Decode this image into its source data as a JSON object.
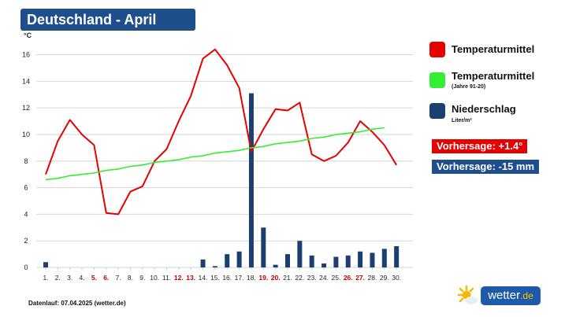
{
  "header": {
    "title": "Deutschland - April"
  },
  "legend": {
    "items": [
      {
        "label": "Temperaturmittel",
        "sub": "",
        "color": "#e60000"
      },
      {
        "label": "Temperaturmittel",
        "sub": "(Jahre 91-20)",
        "color": "#33ee33"
      },
      {
        "label": "Niederschlag",
        "sub": "Liter/m²",
        "color": "#1c3f72"
      }
    ]
  },
  "forecast": {
    "temperature": "Vorhersage: +1.4°",
    "temperature_color": "#e60000",
    "precipitation": "Vorhersage: -15 mm",
    "precipitation_color": "#1f4e8c"
  },
  "footer": {
    "text": "Datenlauf: 07.04.2025 (wetter.de)"
  },
  "logo": {
    "name": "wetter",
    "tld": ".de",
    "icon": "sun-cloud-icon"
  },
  "chart_data": {
    "type": "line",
    "y_unit": "°C",
    "ylim": [
      0,
      16.8
    ],
    "yticks": [
      0,
      2,
      4,
      6,
      8,
      10,
      12,
      14,
      16
    ],
    "grid": true,
    "categories": [
      "1.",
      "2.",
      "3.",
      "4.",
      "5.",
      "6.",
      "7.",
      "8.",
      "9.",
      "10.",
      "11.",
      "12.",
      "13.",
      "14.",
      "15.",
      "16.",
      "17.",
      "18.",
      "19.",
      "20.",
      "21.",
      "22.",
      "23.",
      "24.",
      "25.",
      "26.",
      "27.",
      "28.",
      "29.",
      "30."
    ],
    "weekend_days": [
      "5.",
      "6.",
      "12.",
      "13.",
      "19.",
      "20.",
      "26.",
      "27."
    ],
    "weekend_color": "#c00000",
    "series": [
      {
        "name": "Temperaturmittel",
        "type": "line",
        "color": "#e60000",
        "values": [
          7.0,
          9.5,
          11.1,
          10.0,
          9.2,
          4.1,
          4.0,
          5.7,
          6.1,
          8.0,
          8.9,
          11.0,
          12.9,
          15.7,
          16.4,
          15.2,
          13.5,
          8.7,
          10.4,
          11.9,
          11.8,
          12.4,
          8.5,
          8.0,
          8.4,
          9.4,
          11.0,
          10.2,
          9.2,
          7.7
        ]
      },
      {
        "name": "Temperaturmittel (Jahre 91-20)",
        "type": "line",
        "color": "#33ee33",
        "values": [
          6.6,
          6.7,
          6.9,
          7.0,
          7.1,
          7.3,
          7.4,
          7.6,
          7.7,
          7.9,
          8.0,
          8.1,
          8.3,
          8.4,
          8.6,
          8.7,
          8.8,
          9.0,
          9.1,
          9.3,
          9.4,
          9.5,
          9.7,
          9.8,
          10.0,
          10.1,
          10.2,
          10.4,
          10.5,
          null
        ]
      },
      {
        "name": "Niederschlag",
        "type": "bar",
        "color": "#1c3f72",
        "values": [
          0.4,
          0,
          0,
          0,
          0,
          0,
          0,
          0,
          0,
          0,
          0,
          0,
          0,
          0.6,
          0.1,
          1.0,
          1.2,
          13.1,
          3.0,
          0.2,
          1.0,
          2.0,
          0.9,
          0.3,
          0.8,
          0.9,
          1.2,
          1.1,
          1.4,
          1.6
        ]
      }
    ]
  }
}
